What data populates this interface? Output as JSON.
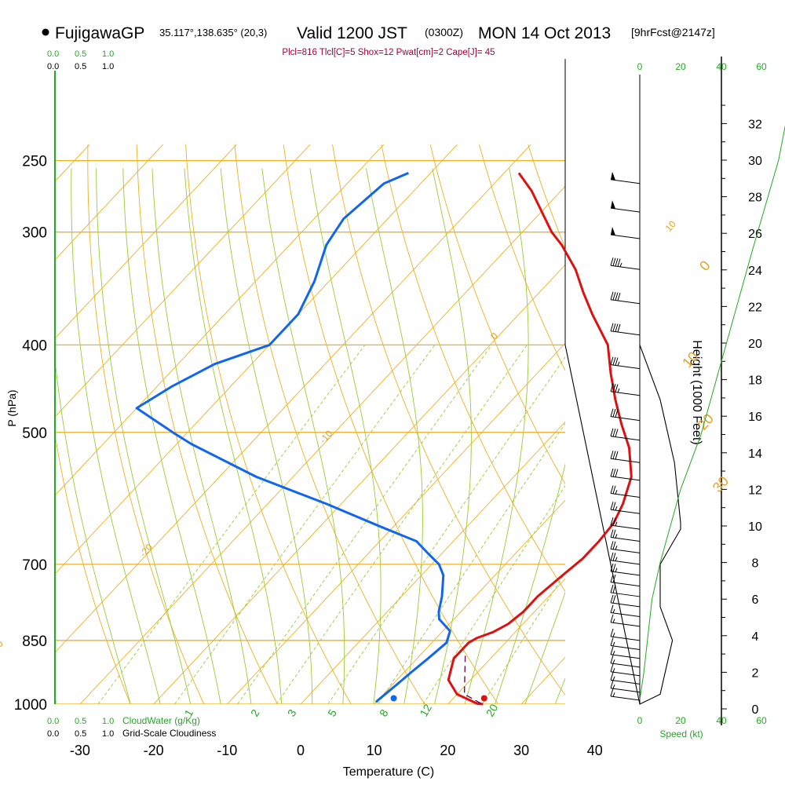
{
  "header": {
    "station": "FujigawaGP",
    "coords": "35.117°,138.635° (20,3)",
    "valid": "Valid 1200 JST",
    "utc": "(0300Z)",
    "date": "MON 14 Oct 2013",
    "fcst": "[9hrFcst@2147z]",
    "indices": "Plcl=816 Tlcl[C]=5 Shox=12 Pwat[cm]=2 Cape[J]= 45"
  },
  "colors": {
    "temperature": "#dd1111",
    "dewpoint": "#1166ee",
    "isotherm": "#f0b020",
    "dry_adiabat": "#f0b020",
    "moist_adiabat": "#99cc33",
    "mixing_ratio": "#99cc33",
    "height_profile": "#22aa22",
    "parcel": "#660044"
  },
  "labels": {
    "cw_ticks": [
      "0.0",
      "0.5",
      "1.0"
    ],
    "cloudwater": "CloudWater (g/Kg)",
    "cloudiness": "Grid-Scale Cloudiness",
    "speed_ticks": [
      "0",
      "20",
      "40",
      "60"
    ],
    "speed_label": "Speed (kt)"
  },
  "chart_data": {
    "type": "line",
    "title": "FujigawaGP Valid 1200 JST (0300Z) MON 14 Oct 2013 [9hrFcst@2147z]",
    "xlabel": "Temperature (C)",
    "ylabel": "P (hPa)",
    "y2label": "Height (1000 Feet)",
    "xticks": [
      -30,
      -20,
      -10,
      0,
      10,
      20,
      30,
      40
    ],
    "yticks": [
      1000,
      850,
      700,
      500,
      400,
      300,
      250
    ],
    "y2ticks": [
      0,
      2,
      4,
      6,
      8,
      10,
      12,
      14,
      16,
      18,
      20,
      22,
      24,
      26,
      28,
      30,
      32
    ],
    "xlim": [
      -35,
      37
    ],
    "ylim": [
      1000,
      250
    ],
    "skew_c_per_log10": 115,
    "isotherm_labels": [
      {
        "value": "0",
        "temperature": 0,
        "pressure": 332
      },
      {
        "value": "10",
        "temperature": 10,
        "pressure": 425
      },
      {
        "value": "20",
        "temperature": 20,
        "pressure": 498
      },
      {
        "value": "30",
        "temperature": 30,
        "pressure": 584
      },
      {
        "value": "10",
        "temperature": -10,
        "pressure": 300
      },
      {
        "value": "0",
        "temperature": -20,
        "pressure": 395
      },
      {
        "value": "-10",
        "temperature": -30,
        "pressure": 515
      },
      {
        "value": "-20",
        "temperature": -40,
        "pressure": 688
      },
      {
        "value": "-30",
        "temperature": -48,
        "pressure": 880
      }
    ],
    "mixing_ratio_labels": [
      "1",
      "2",
      "3",
      "5",
      "8",
      "12",
      "20"
    ],
    "series": [
      {
        "name": "Temperature",
        "points": [
          [
            24.8,
            1000
          ],
          [
            24,
            999
          ],
          [
            20,
            975
          ],
          [
            17,
            940
          ],
          [
            15,
            890
          ],
          [
            15,
            855
          ],
          [
            15.5,
            845
          ],
          [
            17,
            832
          ],
          [
            18,
            815
          ],
          [
            18.5,
            790
          ],
          [
            18.5,
            760
          ],
          [
            19.2,
            720
          ],
          [
            19.8,
            690
          ],
          [
            19.8,
            660
          ],
          [
            19.5,
            630
          ],
          [
            18.3,
            600
          ],
          [
            16,
            560
          ],
          [
            12,
            520
          ],
          [
            8,
            490
          ],
          [
            4,
            460
          ],
          [
            0,
            430
          ],
          [
            -4,
            400
          ],
          [
            -10,
            370
          ],
          [
            -14,
            350
          ],
          [
            -18,
            330
          ],
          [
            -23,
            310
          ],
          [
            -26,
            300
          ],
          [
            -34,
            270
          ],
          [
            -38,
            258
          ]
        ]
      },
      {
        "name": "Dewpoint",
        "points": [
          [
            10,
            995
          ],
          [
            10,
            990
          ],
          [
            10.3,
            970
          ],
          [
            10.6,
            950
          ],
          [
            11,
            920
          ],
          [
            11.5,
            890
          ],
          [
            12,
            855
          ],
          [
            11,
            830
          ],
          [
            8,
            805
          ],
          [
            7,
            790
          ],
          [
            5.5,
            760
          ],
          [
            3,
            720
          ],
          [
            1,
            700
          ],
          [
            -2,
            680
          ],
          [
            -5,
            660
          ],
          [
            -12,
            635
          ],
          [
            -22,
            600
          ],
          [
            -35,
            560
          ],
          [
            -48,
            515
          ],
          [
            -52,
            500
          ],
          [
            -60,
            470
          ],
          [
            -58,
            445
          ],
          [
            -55,
            420
          ],
          [
            -50,
            400
          ],
          [
            -50,
            370
          ],
          [
            -52,
            340
          ],
          [
            -55,
            310
          ],
          [
            -56,
            290
          ],
          [
            -55,
            265
          ],
          [
            -53,
            258
          ]
        ]
      },
      {
        "name": "Parcel",
        "dashed": true,
        "points": [
          [
            24.4,
            998
          ],
          [
            21,
            975
          ],
          [
            16,
            880
          ]
        ]
      }
    ],
    "markers": [
      {
        "name": "surface-temperature",
        "temperature": 24.8,
        "pressure": 997
      },
      {
        "name": "surface-dewpoint",
        "temperature": 12.5,
        "pressure": 997
      }
    ],
    "wind_barbs": [
      {
        "pressure": 265,
        "speed_kt": 50
      },
      {
        "pressure": 285,
        "speed_kt": 50
      },
      {
        "pressure": 305,
        "speed_kt": 50
      },
      {
        "pressure": 330,
        "speed_kt": 45
      },
      {
        "pressure": 360,
        "speed_kt": 40
      },
      {
        "pressure": 390,
        "speed_kt": 40
      },
      {
        "pressure": 425,
        "speed_kt": 35
      },
      {
        "pressure": 455,
        "speed_kt": 35
      },
      {
        "pressure": 485,
        "speed_kt": 30
      },
      {
        "pressure": 510,
        "speed_kt": 30
      },
      {
        "pressure": 540,
        "speed_kt": 30
      },
      {
        "pressure": 565,
        "speed_kt": 30
      },
      {
        "pressure": 590,
        "speed_kt": 25
      },
      {
        "pressure": 615,
        "speed_kt": 25
      },
      {
        "pressure": 640,
        "speed_kt": 25
      },
      {
        "pressure": 660,
        "speed_kt": 25
      },
      {
        "pressure": 680,
        "speed_kt": 25
      },
      {
        "pressure": 700,
        "speed_kt": 25
      },
      {
        "pressure": 720,
        "speed_kt": 25
      },
      {
        "pressure": 740,
        "speed_kt": 20
      },
      {
        "pressure": 760,
        "speed_kt": 20
      },
      {
        "pressure": 780,
        "speed_kt": 20
      },
      {
        "pressure": 800,
        "speed_kt": 15
      },
      {
        "pressure": 820,
        "speed_kt": 15
      },
      {
        "pressure": 850,
        "speed_kt": 15
      },
      {
        "pressure": 870,
        "speed_kt": 15
      },
      {
        "pressure": 890,
        "speed_kt": 15
      },
      {
        "pressure": 910,
        "speed_kt": 15
      },
      {
        "pressure": 930,
        "speed_kt": 15
      },
      {
        "pressure": 950,
        "speed_kt": 15
      },
      {
        "pressure": 970,
        "speed_kt": 15
      },
      {
        "pressure": 990,
        "speed_kt": 15
      }
    ],
    "wind_speed_profile": [
      [
        0,
        1000
      ],
      [
        10,
        975
      ],
      [
        16,
        850
      ],
      [
        10,
        780
      ],
      [
        10,
        700
      ],
      [
        20,
        640
      ],
      [
        20,
        630
      ],
      [
        17,
        540
      ],
      [
        10,
        460
      ],
      [
        0,
        400
      ]
    ],
    "height_profile": [
      [
        0,
        0.5
      ],
      [
        2,
        2
      ],
      [
        3,
        3
      ],
      [
        4,
        4
      ],
      [
        5,
        5
      ],
      [
        6,
        6
      ],
      [
        10,
        8
      ],
      [
        15,
        10
      ],
      [
        20,
        12
      ],
      [
        30,
        15
      ],
      [
        40,
        19
      ],
      [
        55,
        25
      ],
      [
        68,
        30
      ],
      [
        75,
        34
      ]
    ]
  }
}
